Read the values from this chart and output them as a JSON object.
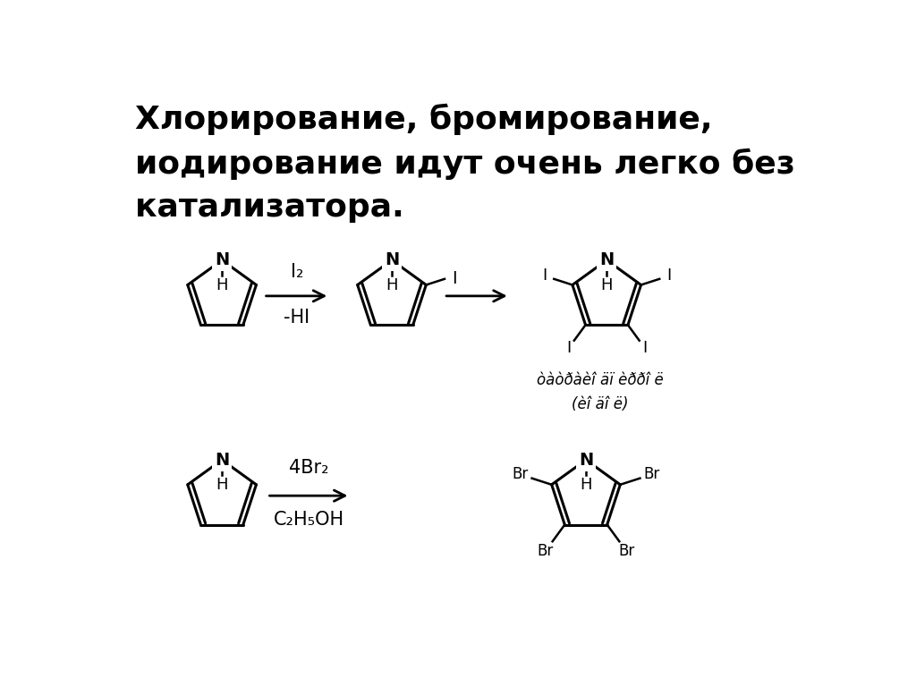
{
  "title_line1": "Хлорирование, бромирование,",
  "title_line2": "иодирование идут очень легко без",
  "title_line3": "катализатора.",
  "title_fontsize": 26,
  "bg_color": "#ffffff",
  "text_color": "#000000",
  "note_line1": "òàòðàèî äï èððî ë",
  "note_line2": "(èî äî ë)",
  "r1_top": "I₂",
  "r1_bot": "-HI",
  "r2_top": "4Br₂",
  "r2_bot": "C₂H₅OH"
}
